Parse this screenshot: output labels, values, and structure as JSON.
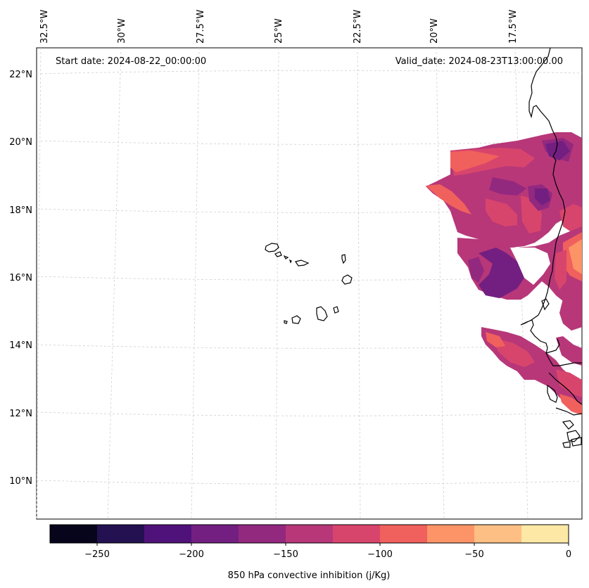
{
  "header": {
    "start_date": "Start date: 2024-08-22_00:00:00",
    "valid_date": "Valid_date: 2024-08-23T13:00:00.00"
  },
  "map": {
    "lon_labels": [
      "32.5°W",
      "30°W",
      "27.5°W",
      "25°W",
      "22.5°W",
      "20°W",
      "17.5°W"
    ],
    "lat_labels": [
      "22°N",
      "20°N",
      "18°N",
      "16°N",
      "14°N",
      "12°N",
      "10°N"
    ],
    "field": "850 hPa convective inhibition",
    "gridlines": true
  },
  "colorbar": {
    "label": "850 hPa convective inhibition (j/Kg)",
    "tick_labels": [
      "−250",
      "−200",
      "−150",
      "−100",
      "−50",
      "0"
    ],
    "range": [
      -275,
      0
    ],
    "colors": [
      "#07051b",
      "#231151",
      "#4f127b",
      "#721f81",
      "#93287f",
      "#b73779",
      "#d8456c",
      "#f0605d",
      "#fd9467",
      "#febf84",
      "#fde8a5"
    ]
  }
}
